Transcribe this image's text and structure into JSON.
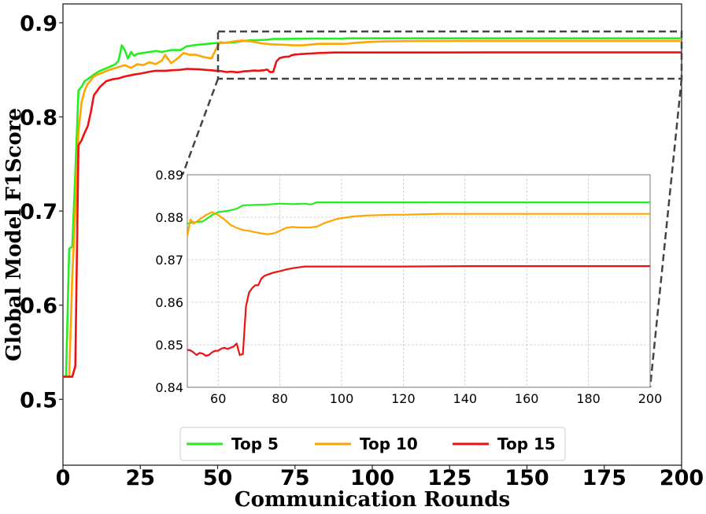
{
  "chart_data": {
    "type": "line",
    "title": "",
    "xlabel": "Communication Rounds",
    "ylabel": "Global Model F1Score",
    "xlim": [
      0,
      200
    ],
    "ylim": [
      0.43,
      0.92
    ],
    "xticks": [
      "0",
      "25",
      "50",
      "75",
      "100",
      "125",
      "150",
      "175",
      "200"
    ],
    "yticks": [
      "0.5",
      "0.6",
      "0.7",
      "0.8",
      "0.9"
    ],
    "grid": false,
    "legend_placement": "lower-center",
    "series": [
      {
        "name": "Top 5",
        "color": "#22ee22",
        "points": [
          [
            0,
            0.524
          ],
          [
            1,
            0.524
          ],
          [
            2,
            0.66
          ],
          [
            3,
            0.662
          ],
          [
            4,
            0.74
          ],
          [
            5,
            0.828
          ],
          [
            6,
            0.832
          ],
          [
            7,
            0.838
          ],
          [
            8,
            0.84
          ],
          [
            10,
            0.845
          ],
          [
            12,
            0.849
          ],
          [
            15,
            0.853
          ],
          [
            17,
            0.856
          ],
          [
            18,
            0.86
          ],
          [
            19,
            0.876
          ],
          [
            20,
            0.871
          ],
          [
            21,
            0.862
          ],
          [
            22,
            0.869
          ],
          [
            23,
            0.865
          ],
          [
            24,
            0.867
          ],
          [
            26,
            0.868
          ],
          [
            28,
            0.869
          ],
          [
            30,
            0.87
          ],
          [
            32,
            0.869
          ],
          [
            35,
            0.871
          ],
          [
            38,
            0.871
          ],
          [
            40,
            0.875
          ],
          [
            42,
            0.876
          ],
          [
            45,
            0.877
          ],
          [
            48,
            0.878
          ],
          [
            50,
            0.8785
          ],
          [
            52,
            0.8788
          ],
          [
            55,
            0.879
          ],
          [
            58,
            0.8805
          ],
          [
            60,
            0.8812
          ],
          [
            63,
            0.8815
          ],
          [
            66,
            0.882
          ],
          [
            68,
            0.8828
          ],
          [
            72,
            0.8829
          ],
          [
            76,
            0.883
          ],
          [
            80,
            0.8832
          ],
          [
            84,
            0.8831
          ],
          [
            88,
            0.8832
          ],
          [
            90,
            0.883
          ],
          [
            92,
            0.8835
          ],
          [
            100,
            0.8835
          ],
          [
            120,
            0.8835
          ],
          [
            140,
            0.8835
          ],
          [
            160,
            0.8835
          ],
          [
            180,
            0.8835
          ],
          [
            200,
            0.8835
          ]
        ]
      },
      {
        "name": "Top 10",
        "color": "#ffa500",
        "points": [
          [
            0,
            0.524
          ],
          [
            2,
            0.524
          ],
          [
            3,
            0.63
          ],
          [
            4,
            0.7
          ],
          [
            5,
            0.785
          ],
          [
            6,
            0.815
          ],
          [
            7,
            0.828
          ],
          [
            8,
            0.835
          ],
          [
            10,
            0.843
          ],
          [
            12,
            0.846
          ],
          [
            15,
            0.85
          ],
          [
            18,
            0.853
          ],
          [
            20,
            0.855
          ],
          [
            22,
            0.852
          ],
          [
            24,
            0.856
          ],
          [
            26,
            0.855
          ],
          [
            28,
            0.858
          ],
          [
            30,
            0.856
          ],
          [
            32,
            0.86
          ],
          [
            33,
            0.866
          ],
          [
            35,
            0.857
          ],
          [
            37,
            0.862
          ],
          [
            39,
            0.868
          ],
          [
            41,
            0.866
          ],
          [
            43,
            0.866
          ],
          [
            45,
            0.864
          ],
          [
            48,
            0.862
          ],
          [
            50,
            0.8755
          ],
          [
            51,
            0.8795
          ],
          [
            52,
            0.8785
          ],
          [
            54,
            0.8795
          ],
          [
            56,
            0.8805
          ],
          [
            58,
            0.8812
          ],
          [
            60,
            0.8805
          ],
          [
            62,
            0.8795
          ],
          [
            64,
            0.8782
          ],
          [
            66,
            0.8775
          ],
          [
            68,
            0.877
          ],
          [
            70,
            0.8768
          ],
          [
            72,
            0.8765
          ],
          [
            74,
            0.8762
          ],
          [
            76,
            0.876
          ],
          [
            78,
            0.8762
          ],
          [
            80,
            0.8768
          ],
          [
            82,
            0.8775
          ],
          [
            84,
            0.8777
          ],
          [
            86,
            0.8776
          ],
          [
            88,
            0.8776
          ],
          [
            90,
            0.8776
          ],
          [
            92,
            0.8778
          ],
          [
            94,
            0.8785
          ],
          [
            96,
            0.879
          ],
          [
            98,
            0.8795
          ],
          [
            100,
            0.8798
          ],
          [
            104,
            0.8802
          ],
          [
            108,
            0.8804
          ],
          [
            112,
            0.8805
          ],
          [
            116,
            0.8806
          ],
          [
            120,
            0.8806
          ],
          [
            126,
            0.8807
          ],
          [
            132,
            0.8808
          ],
          [
            140,
            0.8808
          ],
          [
            150,
            0.8808
          ],
          [
            160,
            0.8808
          ],
          [
            180,
            0.8808
          ],
          [
            200,
            0.8808
          ]
        ]
      },
      {
        "name": "Top 15",
        "color": "#ee1111",
        "points": [
          [
            0,
            0.524
          ],
          [
            3,
            0.524
          ],
          [
            4,
            0.535
          ],
          [
            5,
            0.77
          ],
          [
            6,
            0.775
          ],
          [
            7,
            0.783
          ],
          [
            8,
            0.79
          ],
          [
            9,
            0.805
          ],
          [
            10,
            0.823
          ],
          [
            12,
            0.832
          ],
          [
            14,
            0.838
          ],
          [
            16,
            0.84
          ],
          [
            18,
            0.841
          ],
          [
            20,
            0.843
          ],
          [
            23,
            0.845
          ],
          [
            25,
            0.846
          ],
          [
            28,
            0.848
          ],
          [
            30,
            0.849
          ],
          [
            33,
            0.849
          ],
          [
            35,
            0.8495
          ],
          [
            38,
            0.85
          ],
          [
            40,
            0.851
          ],
          [
            44,
            0.8505
          ],
          [
            48,
            0.8495
          ],
          [
            50,
            0.8488
          ],
          [
            51,
            0.8487
          ],
          [
            52,
            0.8482
          ],
          [
            53,
            0.8476
          ],
          [
            54,
            0.8481
          ],
          [
            55,
            0.8479
          ],
          [
            56,
            0.8474
          ],
          [
            57,
            0.8476
          ],
          [
            58,
            0.8482
          ],
          [
            59,
            0.8486
          ],
          [
            60,
            0.8486
          ],
          [
            61,
            0.8491
          ],
          [
            62,
            0.8493
          ],
          [
            63,
            0.849
          ],
          [
            64,
            0.8493
          ],
          [
            65,
            0.8496
          ],
          [
            66,
            0.8503
          ],
          [
            67,
            0.8476
          ],
          [
            68,
            0.8478
          ],
          [
            69,
            0.859
          ],
          [
            70,
            0.8623
          ],
          [
            71,
            0.8633
          ],
          [
            72,
            0.864
          ],
          [
            73,
            0.864
          ],
          [
            74,
            0.8656
          ],
          [
            75,
            0.8662
          ],
          [
            76,
            0.8665
          ],
          [
            78,
            0.867
          ],
          [
            80,
            0.8673
          ],
          [
            82,
            0.8677
          ],
          [
            84,
            0.868
          ],
          [
            86,
            0.8682
          ],
          [
            88,
            0.8684
          ],
          [
            92,
            0.8684
          ],
          [
            96,
            0.8684
          ],
          [
            100,
            0.8684
          ],
          [
            120,
            0.8684
          ],
          [
            140,
            0.8685
          ],
          [
            160,
            0.8685
          ],
          [
            180,
            0.8685
          ],
          [
            200,
            0.8685
          ]
        ]
      }
    ],
    "inset": {
      "xlim": [
        50,
        200
      ],
      "ylim": [
        0.84,
        0.89
      ],
      "xticks": [
        "60",
        "80",
        "100",
        "120",
        "140",
        "160",
        "180",
        "200"
      ],
      "yticks": [
        "0.84",
        "0.85",
        "0.86",
        "0.87",
        "0.88",
        "0.89"
      ],
      "grid": true
    }
  }
}
